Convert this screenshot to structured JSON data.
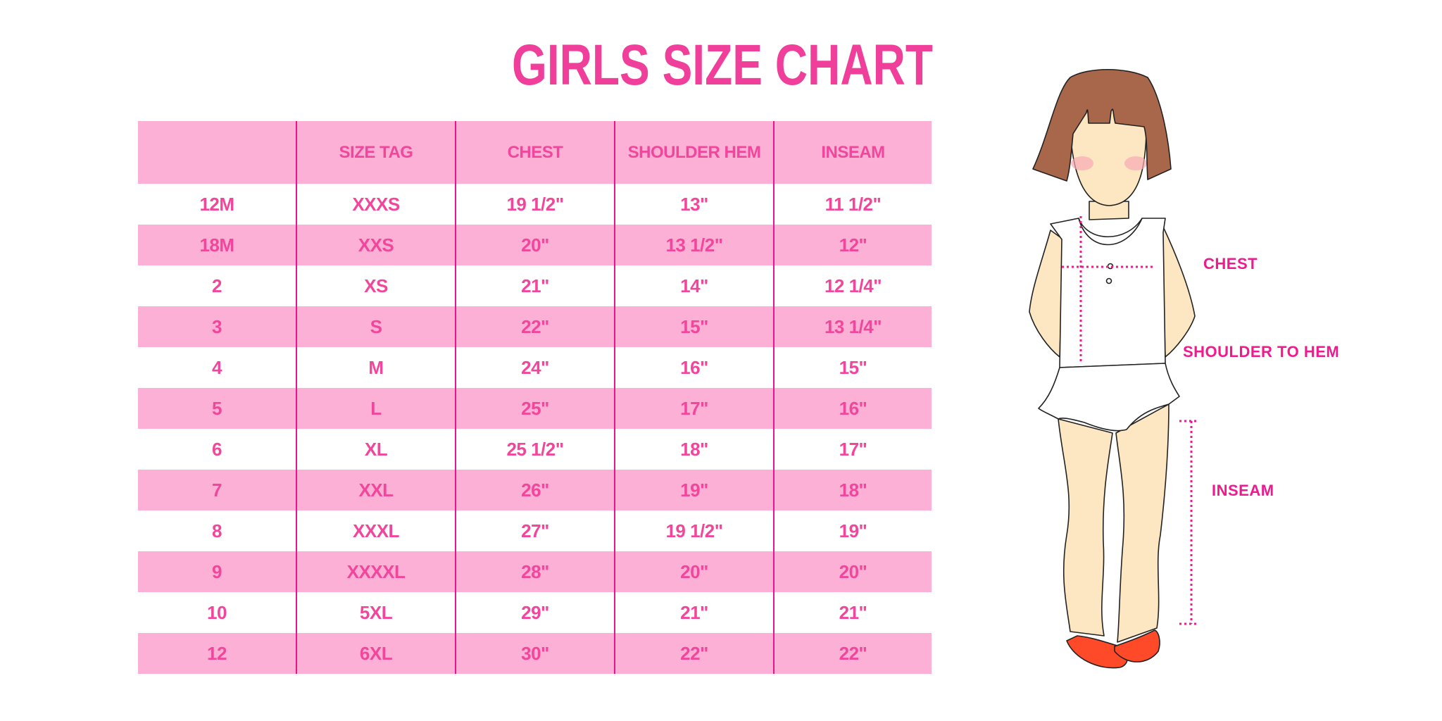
{
  "title": "GIRLS SIZE CHART",
  "colors": {
    "accent": "#f2459c",
    "row_pink": "#fdb0d5",
    "divider": "#e8168a",
    "label": "#ee1a8e"
  },
  "table": {
    "headers": [
      "",
      "SIZE TAG",
      "CHEST",
      "SHOULDER HEM",
      "INSEAM"
    ],
    "rows": [
      [
        "12M",
        "XXXS",
        "19 1/2\"",
        "13\"",
        "11 1/2\""
      ],
      [
        "18M",
        "XXS",
        "20\"",
        "13 1/2\"",
        "12\""
      ],
      [
        "2",
        "XS",
        "21\"",
        "14\"",
        "12 1/4\""
      ],
      [
        "3",
        "S",
        "22\"",
        "15\"",
        "13 1/4\""
      ],
      [
        "4",
        "M",
        "24\"",
        "16\"",
        "15\""
      ],
      [
        "5",
        "L",
        "25\"",
        "17\"",
        "16\""
      ],
      [
        "6",
        "XL",
        "25 1/2\"",
        "18\"",
        "17\""
      ],
      [
        "7",
        "XXL",
        "26\"",
        "19\"",
        "18\""
      ],
      [
        "8",
        "XXXL",
        "27\"",
        "19 1/2\"",
        "19\""
      ],
      [
        "9",
        "XXXXL",
        "28\"",
        "20\"",
        "20\""
      ],
      [
        "10",
        "5XL",
        "29\"",
        "21\"",
        "21\""
      ],
      [
        "12",
        "6XL",
        "30\"",
        "22\"",
        "22\""
      ]
    ]
  },
  "figure": {
    "labels": {
      "chest": "CHEST",
      "shoulder": "SHOULDER TO HEM",
      "inseam": "INSEAM"
    }
  }
}
